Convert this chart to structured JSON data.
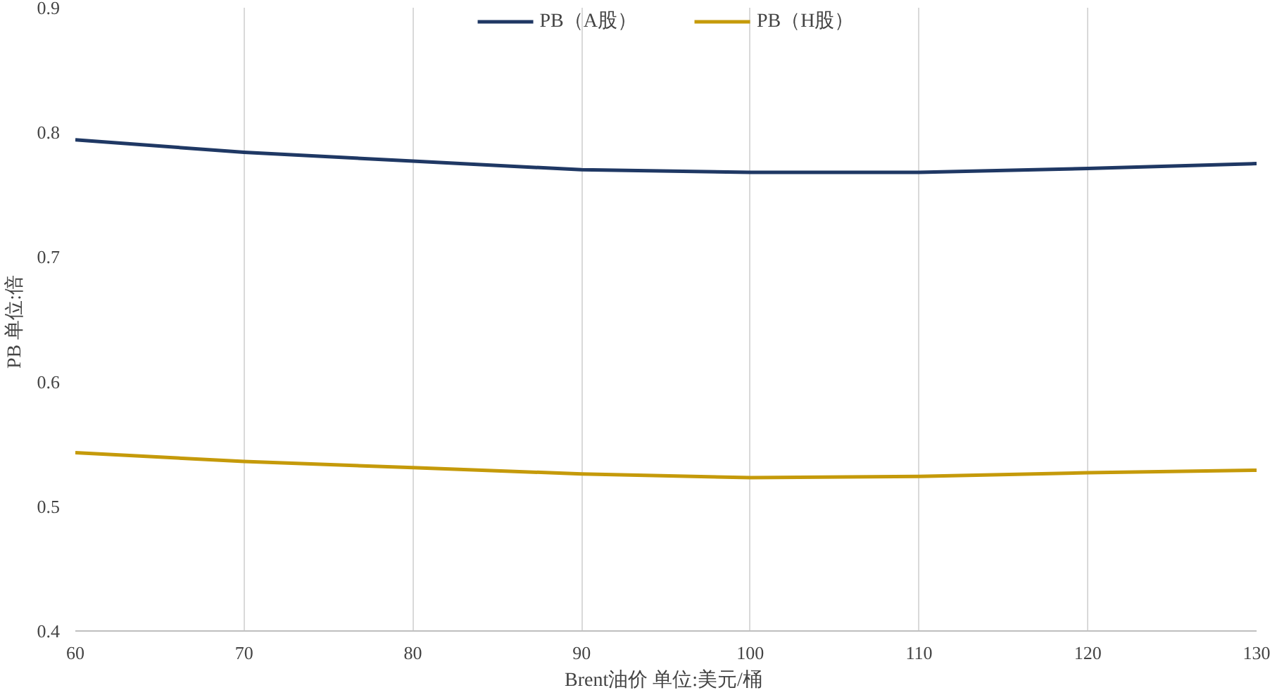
{
  "chart_data": {
    "type": "line",
    "xlabel": "Brent油价  单位:美元/桶",
    "ylabel": "PB  单位:倍",
    "x": [
      60,
      70,
      80,
      90,
      100,
      110,
      120,
      130
    ],
    "series": [
      {
        "name": "PB（A股）",
        "color": "#1f3864",
        "values": [
          0.794,
          0.784,
          0.777,
          0.77,
          0.768,
          0.768,
          0.771,
          0.775
        ]
      },
      {
        "name": "PB（H股）",
        "color": "#c59a0a",
        "values": [
          0.543,
          0.536,
          0.531,
          0.526,
          0.523,
          0.524,
          0.527,
          0.529
        ]
      }
    ],
    "xlim": [
      60,
      130
    ],
    "xticks": [
      60,
      70,
      80,
      90,
      100,
      110,
      120,
      130
    ],
    "ylim": [
      0.4,
      0.9
    ],
    "yticks": [
      {
        "value": 0.4,
        "label": "0.4"
      },
      {
        "value": 0.5,
        "label": "0.5"
      },
      {
        "value": 0.6,
        "label": "0.6"
      },
      {
        "value": 0.7,
        "label": "0.7"
      },
      {
        "value": 0.8,
        "label": "0.8"
      },
      {
        "value": 0.9,
        "label": "0.9"
      }
    ],
    "grid": "x",
    "legend": "top",
    "marker": "none",
    "line_style": "solid"
  }
}
